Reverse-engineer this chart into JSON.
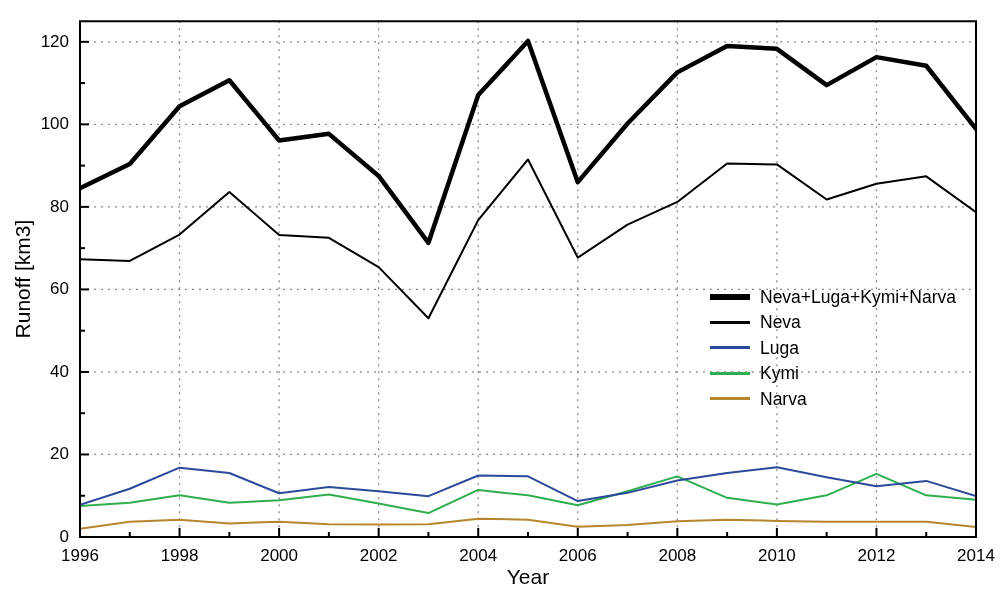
{
  "chart_data": {
    "type": "line",
    "xlabel": "Year",
    "ylabel": "Runoff [km3]",
    "x": [
      1996,
      1997,
      1998,
      1999,
      2000,
      2001,
      2002,
      2003,
      2004,
      2005,
      2006,
      2007,
      2008,
      2009,
      2010,
      2011,
      2012,
      2013,
      2014
    ],
    "series": [
      {
        "name": "Neva+Luga+Kymi+Narva",
        "color": "#000000",
        "values": [
          84.5,
          90.4,
          104.4,
          110.7,
          96.1,
          97.7,
          87.5,
          71.3,
          107.1,
          120.2,
          86.0,
          100.2,
          112.6,
          119.0,
          118.3,
          109.5,
          116.3,
          114.2,
          98.9
        ]
      },
      {
        "name": "Neva",
        "color": "#000000",
        "values": [
          67.3,
          66.9,
          73.3,
          83.6,
          73.2,
          72.5,
          65.4,
          53.0,
          76.8,
          91.5,
          67.7,
          75.7,
          81.2,
          90.5,
          90.3,
          81.8,
          85.6,
          87.4,
          78.7
        ]
      },
      {
        "name": "Luga",
        "color": "#2b4a9b",
        "values": [
          7.8,
          11.7,
          16.8,
          15.5,
          10.6,
          12.1,
          11.1,
          9.9,
          14.9,
          14.7,
          8.7,
          10.7,
          13.7,
          15.5,
          16.9,
          14.5,
          12.3,
          13.6,
          9.9
        ]
      },
      {
        "name": "Kymi",
        "color": "#2fae4e",
        "values": [
          7.5,
          8.3,
          10.1,
          8.3,
          8.9,
          10.3,
          8.1,
          5.8,
          11.4,
          10.1,
          7.7,
          11.1,
          14.7,
          9.5,
          7.9,
          10.1,
          15.3,
          10.1,
          9.0
        ]
      },
      {
        "name": "Narva",
        "color": "#b5862e",
        "values": [
          2.0,
          3.7,
          4.2,
          3.3,
          3.7,
          3.1,
          3.0,
          3.1,
          4.4,
          4.2,
          2.5,
          2.9,
          3.8,
          4.2,
          3.9,
          3.7,
          3.7,
          3.7,
          2.4
        ]
      }
    ],
    "xlim": [
      1996,
      2014
    ],
    "xticks": [
      1996,
      {
        "value": 1997,
        "label": null
      },
      1998,
      {
        "value": 1999,
        "label": null
      },
      2000,
      {
        "value": 2001,
        "label": null
      },
      2002,
      {
        "value": 2003,
        "label": null
      },
      2004,
      {
        "value": 2005,
        "label": null
      },
      2006,
      {
        "value": 2007,
        "label": null
      },
      2008,
      {
        "value": 2009,
        "label": null
      },
      2010,
      {
        "value": 2011,
        "label": null
      },
      2012,
      {
        "value": 2013,
        "label": null
      },
      2014
    ],
    "ylim": [
      0,
      125
    ],
    "yticks": [
      0,
      {
        "value": 10,
        "label": null
      },
      20,
      {
        "value": 30,
        "label": null
      },
      40,
      {
        "value": 50,
        "label": null
      },
      60,
      {
        "value": 70,
        "label": null
      },
      80,
      {
        "value": 90,
        "label": null
      },
      100,
      {
        "value": 110,
        "label": null
      },
      120
    ],
    "grid": true,
    "legend": "right",
    "marker": "none",
    "line_style": "solid"
  }
}
